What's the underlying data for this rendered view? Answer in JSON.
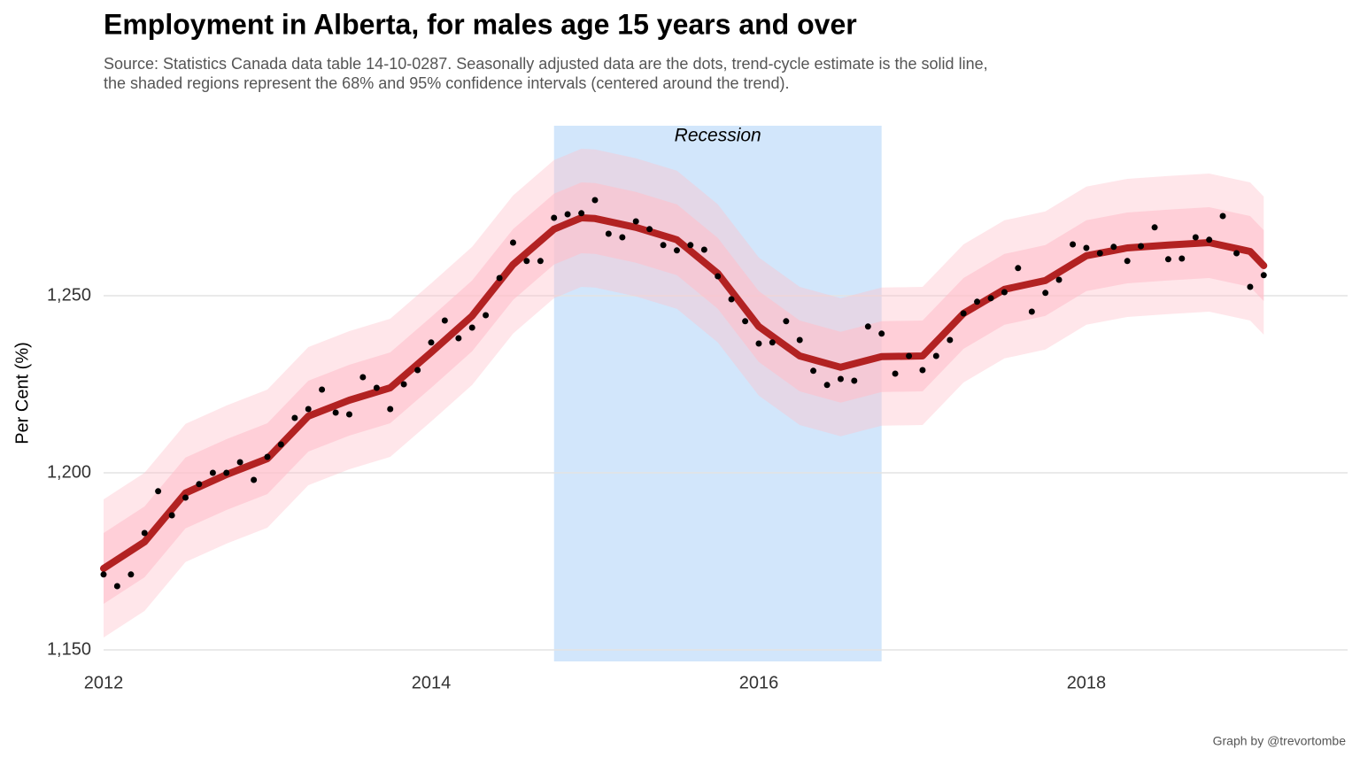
{
  "chart_data": {
    "type": "line",
    "title": "Employment in Alberta, for males age 15 years and over",
    "subtitle": [
      "Source: Statistics Canada data table 14-10-0287. Seasonally adjusted data are the dots, trend-cycle estimate is the solid line,",
      "the shaded regions represent the 68% and 95% confidence intervals (centered around the trend)."
    ],
    "y_label": "Per Cent (%)",
    "caption": "Graph by @trevortombe",
    "recession": {
      "label": "Recession",
      "x": [
        2014.75,
        2016.75
      ],
      "color": "#d2e6fb"
    },
    "points": {
      "color": "#000000",
      "x": [
        2012,
        2012.083,
        2012.167,
        2012.25,
        2012.333,
        2012.417,
        2012.5,
        2012.583,
        2012.667,
        2012.75,
        2012.833,
        2012.917,
        2013,
        2013.083,
        2013.167,
        2013.25,
        2013.333,
        2013.417,
        2013.5,
        2013.583,
        2013.667,
        2013.75,
        2013.833,
        2013.917,
        2014,
        2014.083,
        2014.167,
        2014.25,
        2014.333,
        2014.417,
        2014.5,
        2014.583,
        2014.667,
        2014.75,
        2014.833,
        2014.917,
        2015,
        2015.083,
        2015.167,
        2015.25,
        2015.333,
        2015.417,
        2015.5,
        2015.583,
        2015.667,
        2015.75,
        2015.833,
        2015.917,
        2016,
        2016.083,
        2016.167,
        2016.25,
        2016.333,
        2016.417,
        2016.5,
        2016.583,
        2016.667,
        2016.75,
        2016.833,
        2016.917,
        2017,
        2017.083,
        2017.167,
        2017.25,
        2017.333,
        2017.417,
        2017.5,
        2017.583,
        2017.667,
        2017.75,
        2017.833,
        2017.917,
        2018,
        2018.083,
        2018.167,
        2018.25,
        2018.333,
        2018.417,
        2018.5,
        2018.583,
        2018.667,
        2018.75,
        2018.833,
        2018.917,
        2019,
        2019.083
      ],
      "values": [
        1171.3,
        1168,
        1171.3,
        1183,
        1194.8,
        1188,
        1193,
        1196.8,
        1200,
        1200,
        1203,
        1198,
        1204.5,
        1208,
        1215.5,
        1218,
        1223.5,
        1217,
        1216.5,
        1227,
        1224,
        1218,
        1225,
        1229,
        1236.8,
        1243,
        1238,
        1241,
        1244.5,
        1255,
        1265,
        1259.8,
        1259.8,
        1272,
        1273,
        1273.3,
        1277,
        1267.5,
        1266.5,
        1271,
        1268.8,
        1264.3,
        1262.8,
        1264.3,
        1263,
        1255.5,
        1249,
        1242.8,
        1236.5,
        1236.8,
        1242.8,
        1237.5,
        1228.8,
        1224.8,
        1226.5,
        1226,
        1241.3,
        1239.3,
        1228,
        1233,
        1229,
        1233,
        1237.5,
        1245,
        1248.3,
        1249.3,
        1251,
        1257.8,
        1245.5,
        1250.8,
        1254.5,
        1264.5,
        1263.5,
        1262,
        1263.8,
        1259.8,
        1264,
        1269.3,
        1260.3,
        1260.5,
        1266.5,
        1265.8,
        1272.5,
        1262,
        1252.5,
        1255.8
      ]
    },
    "trend": {
      "color": "#b22222",
      "x": [
        2012,
        2012.25,
        2012.5,
        2012.75,
        2013,
        2013.25,
        2013.5,
        2013.75,
        2014,
        2014.25,
        2014.5,
        2014.75,
        2014.917,
        2015,
        2015.25,
        2015.5,
        2015.75,
        2016,
        2016.25,
        2016.5,
        2016.75,
        2017,
        2017.25,
        2017.5,
        2017.75,
        2018,
        2018.25,
        2018.5,
        2018.75,
        2019,
        2019.083
      ],
      "values": [
        1173,
        1180.5,
        1194.3,
        1199.5,
        1204,
        1216,
        1220.5,
        1224,
        1234,
        1244.3,
        1258.8,
        1268.8,
        1272,
        1271.8,
        1269.3,
        1265.8,
        1256.3,
        1241.3,
        1233,
        1229.8,
        1232.8,
        1233,
        1245,
        1251.8,
        1254.3,
        1261.3,
        1263.5,
        1264.3,
        1265,
        1262.5,
        1258.5
      ]
    },
    "bands": [
      {
        "color": "#ffc0cb",
        "opacity": 0.4,
        "lower": [
          1153.5,
          1161,
          1174.8,
          1180,
          1184.5,
          1196.5,
          1201,
          1204.5,
          1214.5,
          1224.8,
          1239.3,
          1249.3,
          1252.5,
          1252.3,
          1249.8,
          1246.3,
          1236.8,
          1221.8,
          1213.5,
          1210.3,
          1213.3,
          1213.5,
          1225.5,
          1232.3,
          1234.8,
          1241.8,
          1244,
          1244.8,
          1245.5,
          1243,
          1239
        ],
        "upper": [
          1192.5,
          1200,
          1213.8,
          1219,
          1223.5,
          1235.5,
          1240,
          1243.5,
          1253.5,
          1263.8,
          1278.3,
          1288.3,
          1291.5,
          1291.3,
          1288.8,
          1285.3,
          1275.8,
          1260.8,
          1252.5,
          1249.3,
          1252.3,
          1252.5,
          1264.5,
          1271.3,
          1273.8,
          1280.8,
          1283,
          1283.8,
          1284.5,
          1282,
          1278
        ]
      },
      {
        "color": "#ffc0cb",
        "opacity": 0.6,
        "lower": [
          1163,
          1170.5,
          1184.3,
          1189.5,
          1194,
          1206,
          1210.5,
          1214,
          1224,
          1234.3,
          1248.8,
          1258.8,
          1262,
          1261.8,
          1259.3,
          1255.8,
          1246.3,
          1231.3,
          1223,
          1219.8,
          1222.8,
          1223,
          1235,
          1241.8,
          1244.3,
          1251.3,
          1253.5,
          1254.3,
          1255,
          1252.5,
          1248.5
        ],
        "upper": [
          1183,
          1190.5,
          1204.3,
          1209.5,
          1214,
          1226,
          1230.5,
          1234,
          1244,
          1254.3,
          1268.8,
          1278.8,
          1282,
          1281.8,
          1279.3,
          1275.8,
          1266.3,
          1251.3,
          1243,
          1239.8,
          1242.8,
          1243,
          1255,
          1261.8,
          1264.3,
          1271.3,
          1273.5,
          1274.3,
          1275,
          1272.5,
          1268.5
        ]
      }
    ],
    "xlim": [
      2012,
      2019.595
    ],
    "xticks": [
      2012,
      2014,
      2016,
      2018
    ],
    "ylim": [
      1146.75,
      1298
    ],
    "yticks": [
      {
        "value": 1150,
        "label": "1,150"
      },
      {
        "value": 1200,
        "label": "1,200"
      },
      {
        "value": 1250,
        "label": "1,250"
      }
    ],
    "grid": true
  }
}
